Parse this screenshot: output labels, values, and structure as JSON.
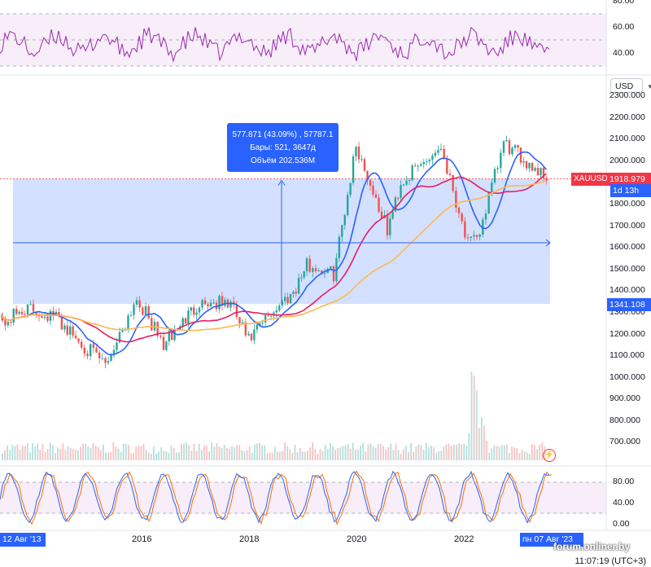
{
  "currency_label": "USD",
  "symbol_label": "XAUUSD",
  "price_label": "1918.979",
  "countdown_label": "1d 13h",
  "range_low_label": "1341.108",
  "time_label": "11:07:19 (UTC+3)",
  "watermark_text": "forum.onliner.by",
  "lightning_icon": "lightning-icon",
  "colors": {
    "up": "#26a69a",
    "down": "#ef5350",
    "ma_blue": "#2962ff",
    "ma_red": "#e91e63",
    "ma_orange": "#ffb74d",
    "rsi_line": "#9c27b0",
    "range_fill": "#2962ff",
    "symbol_badge": "#f23645",
    "countdown_badge": "#2962ff",
    "osc_blue": "#2962ff",
    "osc_orange": "#ff6d00"
  },
  "tooltip": {
    "line1": "577.871 (43.09%) , 57787.1",
    "line2": "Бары: 521, 3647д",
    "line3": "Объём 202.536M"
  },
  "x_axis": {
    "labels": [
      "2016",
      "2018",
      "2020",
      "2022"
    ],
    "start_label": "12 Авг '13",
    "end_label": "пн 07 Авг '23"
  },
  "y_axis": {
    "labels": [
      "2300.000",
      "2200.000",
      "2100.000",
      "2000.000",
      "1900.000",
      "1800.000",
      "1700.000",
      "1600.000",
      "1500.000",
      "1400.000",
      "1300.000",
      "1200.000",
      "1100.000",
      "1000.000",
      "900.000",
      "800.000",
      "700.000"
    ]
  },
  "rsi_axis": {
    "labels": [
      "80.00",
      "60.00",
      "40.00"
    ]
  },
  "stoch_axis": {
    "labels": [
      "80.00",
      "40.00",
      "0.00"
    ]
  },
  "chart_data": {
    "type": "candlestick",
    "series": [
      {
        "name": "XAUUSD",
        "x": [
          "2013-08",
          "2014-01",
          "2014-06",
          "2015-01",
          "2015-06",
          "2015-12",
          "2016-07",
          "2017-01",
          "2017-09",
          "2018-04",
          "2018-08",
          "2019-01",
          "2019-06",
          "2019-09",
          "2020-03",
          "2020-08",
          "2021-03",
          "2021-06",
          "2022-03",
          "2022-09",
          "2022-11",
          "2023-05",
          "2023-08"
        ],
        "y": [
          1320,
          1250,
          1320,
          1280,
          1170,
          1060,
          1370,
          1150,
          1350,
          1340,
          1170,
          1300,
          1400,
          1520,
          1480,
          2075,
          1680,
          1900,
          2070,
          1620,
          1630,
          2080,
          1919
        ]
      }
    ],
    "measured_range": {
      "low": 1341.108,
      "high": 1918.979,
      "change": 577.871,
      "change_pct": 43.09,
      "bars": 521,
      "days": 3647,
      "volume": "202.536M"
    },
    "ylim": [
      650,
      2350
    ],
    "last_price": 1918.979
  }
}
